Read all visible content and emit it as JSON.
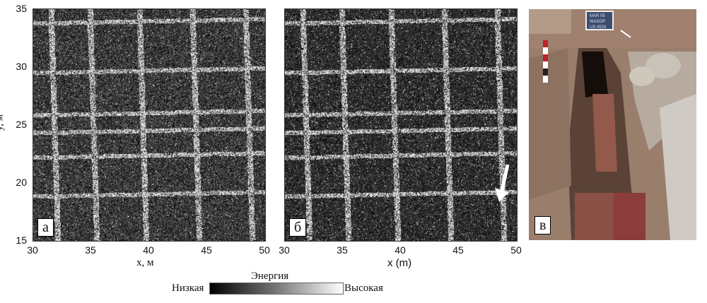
{
  "panel_a": {
    "label": "а",
    "xlabel": "x, м",
    "ylabel": "y, м"
  },
  "panel_b": {
    "label": "б",
    "xlabel": "x (m)"
  },
  "panel_c": {
    "label": "в",
    "slate_text": "MAR 05 WASOP US 4526"
  },
  "x_ticks": [
    "30",
    "35",
    "40",
    "45",
    "50"
  ],
  "y_ticks": [
    "35",
    "30",
    "25",
    "20",
    "15"
  ],
  "colorbar": {
    "title": "Энергия",
    "low": "Низкая",
    "high": "Высокая"
  }
}
